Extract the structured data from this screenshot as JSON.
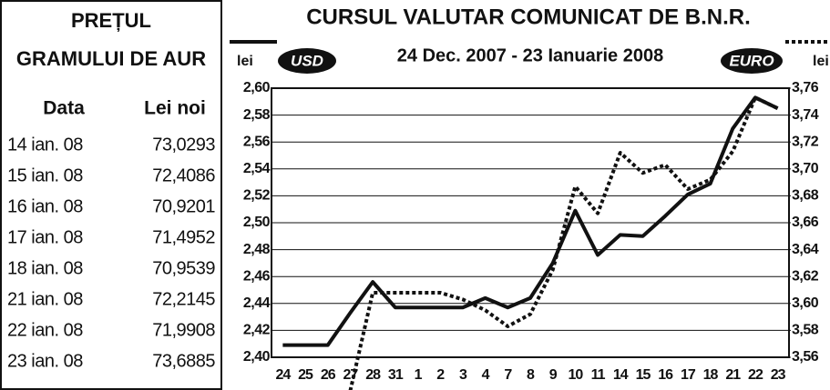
{
  "gold_table": {
    "title": [
      "PREȚUL",
      "GRAMULUI DE AUR"
    ],
    "headers": [
      "Data",
      "Lei noi"
    ],
    "rows": [
      [
        "14 ian. 08",
        "73,0293"
      ],
      [
        "15 ian. 08",
        "72,4086"
      ],
      [
        "16 ian. 08",
        "70,9201"
      ],
      [
        "17 ian. 08",
        "71,4952"
      ],
      [
        "18 ian. 08",
        "70,9539"
      ],
      [
        "21 ian. 08",
        "72,2145"
      ],
      [
        "22 ian. 08",
        "71,9908"
      ],
      [
        "23 ian. 08",
        "73,6885"
      ]
    ]
  },
  "chart_data": {
    "type": "line",
    "title": "CURSUL VALUTAR COMUNICAT DE B.N.R.",
    "subtitle": "24 Dec. 2007 - 23 Ianuarie 2008",
    "y_label": "lei",
    "y2_label": "lei",
    "categories": [
      "24",
      "25",
      "26",
      "27",
      "28",
      "31",
      "1",
      "2",
      "3",
      "4",
      "7",
      "8",
      "9",
      "10",
      "11",
      "14",
      "15",
      "16",
      "17",
      "18",
      "21",
      "22",
      "23"
    ],
    "series": [
      {
        "name": "USD",
        "color": "#111111",
        "style": "solid",
        "values": [
          2.409,
          2.409,
          2.409,
          2.433,
          2.456,
          2.437,
          2.437,
          2.437,
          2.437,
          2.444,
          2.437,
          2.444,
          2.47,
          2.509,
          2.476,
          2.491,
          2.49,
          2.505,
          2.521,
          2.529,
          2.57,
          2.593,
          2.585
        ]
      },
      {
        "name": "EURO",
        "color": "#111111",
        "style": "dotted",
        "axis": "y2",
        "values": [
          null,
          null,
          null,
          3.535,
          3.608,
          3.608,
          3.608,
          3.608,
          3.603,
          3.595,
          3.583,
          3.592,
          3.625,
          3.687,
          3.667,
          3.712,
          3.697,
          3.703,
          3.685,
          3.692,
          3.713,
          3.753,
          3.745
        ]
      }
    ],
    "ylim": [
      2.4,
      2.6
    ],
    "yticks": [
      {
        "value": 2.4,
        "label": "2,40"
      },
      {
        "value": 2.42,
        "label": "2,42"
      },
      {
        "value": 2.44,
        "label": "2,44"
      },
      {
        "value": 2.46,
        "label": "2,46"
      },
      {
        "value": 2.48,
        "label": "2,48"
      },
      {
        "value": 2.5,
        "label": "2,50"
      },
      {
        "value": 2.52,
        "label": "2,52"
      },
      {
        "value": 2.54,
        "label": "2,54"
      },
      {
        "value": 2.56,
        "label": "2,56"
      },
      {
        "value": 2.58,
        "label": "2,58"
      },
      {
        "value": 2.6,
        "label": "2,60"
      }
    ],
    "y2lim": [
      3.56,
      3.76
    ],
    "y2ticks": [
      {
        "value": 3.56,
        "label": "3,56"
      },
      {
        "value": 3.58,
        "label": "3,58"
      },
      {
        "value": 3.6,
        "label": "3,60"
      },
      {
        "value": 3.62,
        "label": "3,62"
      },
      {
        "value": 3.64,
        "label": "3,64"
      },
      {
        "value": 3.66,
        "label": "3,66"
      },
      {
        "value": 3.68,
        "label": "3,68"
      },
      {
        "value": 3.7,
        "label": "3,70"
      },
      {
        "value": 3.72,
        "label": "3,72"
      },
      {
        "value": 3.74,
        "label": "3,74"
      },
      {
        "value": 3.76,
        "label": "3,76"
      }
    ],
    "grid": true
  }
}
